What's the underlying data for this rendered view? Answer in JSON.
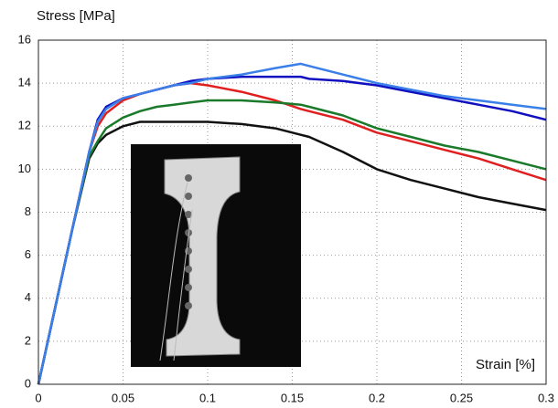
{
  "chart_data": {
    "type": "line",
    "x_label": "Strain [%]",
    "y_label": "Stress [MPa]",
    "x": [
      0,
      0.01,
      0.02,
      0.03,
      0.035,
      0.04,
      0.05,
      0.06,
      0.07,
      0.08,
      0.09,
      0.1,
      0.12,
      0.14,
      0.155,
      0.16,
      0.18,
      0.2,
      0.22,
      0.24,
      0.26,
      0.28,
      0.3
    ],
    "series": [
      {
        "color": "#111111",
        "values": [
          0,
          3.6,
          7.2,
          10.5,
          11.2,
          11.6,
          12.0,
          12.2,
          12.2,
          12.2,
          12.2,
          12.2,
          12.1,
          11.9,
          11.6,
          11.5,
          10.8,
          10.0,
          9.5,
          9.1,
          8.7,
          8.4,
          8.1
        ]
      },
      {
        "color": "#e02020",
        "values": [
          0,
          3.6,
          7.2,
          10.8,
          12.0,
          12.6,
          13.2,
          13.5,
          13.7,
          13.9,
          14.0,
          13.9,
          13.6,
          13.2,
          12.8,
          12.7,
          12.3,
          11.7,
          11.3,
          10.9,
          10.5,
          10.0,
          9.5
        ]
      },
      {
        "color": "#1a7a2a",
        "values": [
          0,
          3.6,
          7.2,
          10.6,
          11.3,
          11.9,
          12.4,
          12.7,
          12.9,
          13.0,
          13.1,
          13.2,
          13.2,
          13.1,
          13.0,
          12.9,
          12.5,
          11.9,
          11.5,
          11.1,
          10.8,
          10.4,
          10.0
        ]
      },
      {
        "color": "#1010c0",
        "values": [
          0,
          3.6,
          7.2,
          10.8,
          12.3,
          12.9,
          13.3,
          13.5,
          13.7,
          13.9,
          14.1,
          14.2,
          14.3,
          14.3,
          14.3,
          14.2,
          14.1,
          13.9,
          13.6,
          13.3,
          13.0,
          12.7,
          12.3
        ]
      },
      {
        "color": "#3a80e8",
        "values": [
          0,
          3.6,
          7.2,
          10.8,
          12.2,
          12.8,
          13.3,
          13.5,
          13.7,
          13.9,
          14.0,
          14.2,
          14.4,
          14.7,
          14.9,
          14.8,
          14.4,
          14.0,
          13.7,
          13.4,
          13.2,
          13.0,
          12.8
        ]
      }
    ],
    "xlim": [
      0,
      0.3
    ],
    "xticks": [
      0,
      0.05,
      0.1,
      0.15,
      0.2,
      0.25,
      0.3
    ],
    "ylim": [
      0,
      16
    ],
    "yticks": [
      0,
      2,
      4,
      6,
      8,
      10,
      12,
      14,
      16
    ],
    "grid": true
  }
}
